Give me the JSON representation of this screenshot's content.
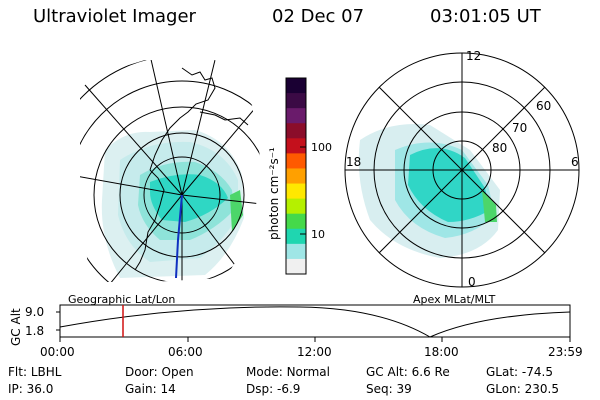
{
  "header": {
    "instrument": "Ultraviolet Imager",
    "date": "02 Dec 07",
    "time": "03:01:05 UT"
  },
  "left_panel": {
    "caption": "Geographic Lat/Lon"
  },
  "right_panel": {
    "caption": "Apex MLat/MLT",
    "mlt_labels": {
      "top": "12",
      "bottom": "0",
      "left": "18",
      "right": "6"
    },
    "mlat_labels": [
      "80",
      "70",
      "60"
    ]
  },
  "colorbar": {
    "unit": "photon cm⁻²s⁻¹",
    "ticks": [
      "100",
      "10"
    ],
    "colors": [
      "#1a0033",
      "#3b0a45",
      "#6a1b6b",
      "#8b0d2a",
      "#c4101c",
      "#ff5a00",
      "#ffa000",
      "#ffe800",
      "#b5f000",
      "#45d94a",
      "#1fd6b0",
      "#9fe6e6",
      "#f0f0f0"
    ]
  },
  "altitude_plot": {
    "axis_label": "GC Alt",
    "y_ticks": [
      "9.0",
      "1.8"
    ],
    "x_ticks": [
      "00:00",
      "06:00",
      "12:00",
      "18:00",
      "23:59"
    ],
    "marker_color": "#d01010"
  },
  "info": [
    {
      "label": "Flt:",
      "value": "LBHL"
    },
    {
      "label": "Door:",
      "value": "Open"
    },
    {
      "label": "Mode:",
      "value": "Normal"
    },
    {
      "label": "GC Alt:",
      "value": "6.6 Re"
    },
    {
      "label": "GLat:",
      "value": "-74.5"
    },
    {
      "label": "IP:",
      "value": "36.0"
    },
    {
      "label": "Gain:",
      "value": "14"
    },
    {
      "label": "Dsp:",
      "value": "-6.9"
    },
    {
      "label": "Seq:",
      "value": "39"
    },
    {
      "label": "GLon:",
      "value": "230.5"
    }
  ]
}
